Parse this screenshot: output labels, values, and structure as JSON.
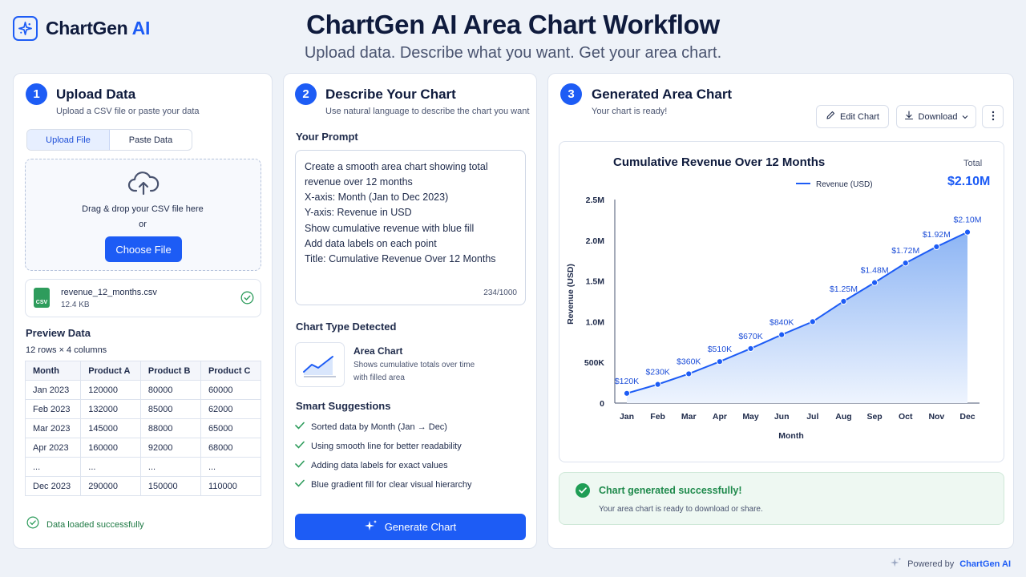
{
  "header": {
    "logo_text_main": "ChartGen",
    "logo_text_ai": "AI",
    "title": "ChartGen AI Area Chart Workflow",
    "subtitle": "Upload data. Describe what you want. Get your area chart."
  },
  "step1": {
    "number": "1",
    "title": "Upload Data",
    "subtitle": "Upload a CSV file or paste your data",
    "tabs": [
      {
        "label": "Upload File",
        "active": true
      },
      {
        "label": "Paste Data",
        "active": false
      }
    ],
    "dropzone_text": "Drag & drop your CSV file here",
    "dropzone_or": "or",
    "choose_button": "Choose File",
    "file_name": "revenue_12_months.csv",
    "file_size": "12.4 KB",
    "file_ext": "CSV",
    "preview_title": "Preview Data",
    "preview_meta": "12 rows × 4 columns",
    "columns": [
      "Month",
      "Product A",
      "Product B",
      "Product C"
    ],
    "rows": [
      [
        "Jan 2023",
        "120000",
        "80000",
        "60000"
      ],
      [
        "Feb 2023",
        "132000",
        "85000",
        "62000"
      ],
      [
        "Mar 2023",
        "145000",
        "88000",
        "65000"
      ],
      [
        "Apr 2023",
        "160000",
        "92000",
        "68000"
      ],
      [
        "...",
        "...",
        "...",
        "..."
      ],
      [
        "Dec 2023",
        "290000",
        "150000",
        "110000"
      ]
    ],
    "status": "Data loaded successfully"
  },
  "step2": {
    "number": "2",
    "title": "Describe Your Chart",
    "subtitle": "Use natural language to describe the chart you want",
    "prompt_label": "Your Prompt",
    "prompt_lines": [
      "Create a smooth area chart showing total",
      "revenue over 12 months",
      "X-axis: Month (Jan to Dec 2023)",
      "Y-axis: Revenue in USD",
      "Show cumulative revenue with blue fill",
      "Add data labels on each point",
      "Title: Cumulative Revenue Over 12 Months"
    ],
    "char_count": "234/1000",
    "chart_type_label": "Chart Type Detected",
    "chart_type_name": "Area Chart",
    "chart_type_desc_1": "Shows cumulative totals over time",
    "chart_type_desc_2": "with filled area",
    "suggestions_label": "Smart Suggestions",
    "suggestions": [
      "Sorted data by Month (Jan → Dec)",
      "Using smooth line for better readability",
      "Adding data labels for exact values",
      "Blue gradient fill for clear visual hierarchy"
    ],
    "generate_button": "Generate Chart"
  },
  "step3": {
    "number": "3",
    "title": "Generated Area Chart",
    "subtitle": "Your chart is ready!",
    "edit_button": "Edit Chart",
    "download_button": "Download",
    "total_label": "Total",
    "total_value": "$2.10M",
    "success_title": "Chart generated successfully!",
    "success_text": "Your area chart is ready to download or share."
  },
  "chart_data": {
    "type": "area",
    "title": "Cumulative Revenue Over 12 Months",
    "xlabel": "Month",
    "ylabel": "Revenue (USD)",
    "legend": "top-center",
    "series_name": "Revenue (USD)",
    "categories": [
      "Jan",
      "Feb",
      "Mar",
      "Apr",
      "May",
      "Jun",
      "Jul",
      "Aug",
      "Sep",
      "Oct",
      "Nov",
      "Dec"
    ],
    "values": [
      120000,
      230000,
      360000,
      510000,
      670000,
      840000,
      1000000,
      1250000,
      1480000,
      1720000,
      1920000,
      2100000
    ],
    "labels": [
      "$120K",
      "$230K",
      "$360K",
      "$510K",
      "$670K",
      "$840K",
      "",
      "$1.25M",
      "$1.48M",
      "$1.72M",
      "$1.92M",
      "$2.10M"
    ],
    "ylim": [
      0,
      2500000
    ],
    "yticks": [
      0,
      500000,
      1000000,
      1500000,
      2000000,
      2500000
    ],
    "ytick_labels": [
      "0",
      "500K",
      "1.0M",
      "1.5M",
      "2.0M",
      "2.5M"
    ],
    "grid": false
  },
  "footer": {
    "prefix": "Powered by",
    "brand": "ChartGen AI"
  },
  "colors": {
    "accent": "#1d5cf5",
    "success": "#1f9d55",
    "fill": "#cfe0fb"
  }
}
